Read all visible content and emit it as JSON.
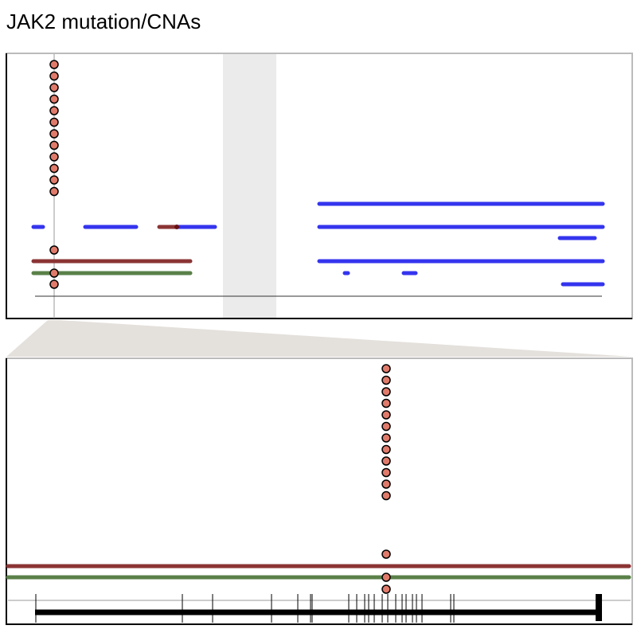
{
  "title": "JAK2 mutation/CNAs"
}
